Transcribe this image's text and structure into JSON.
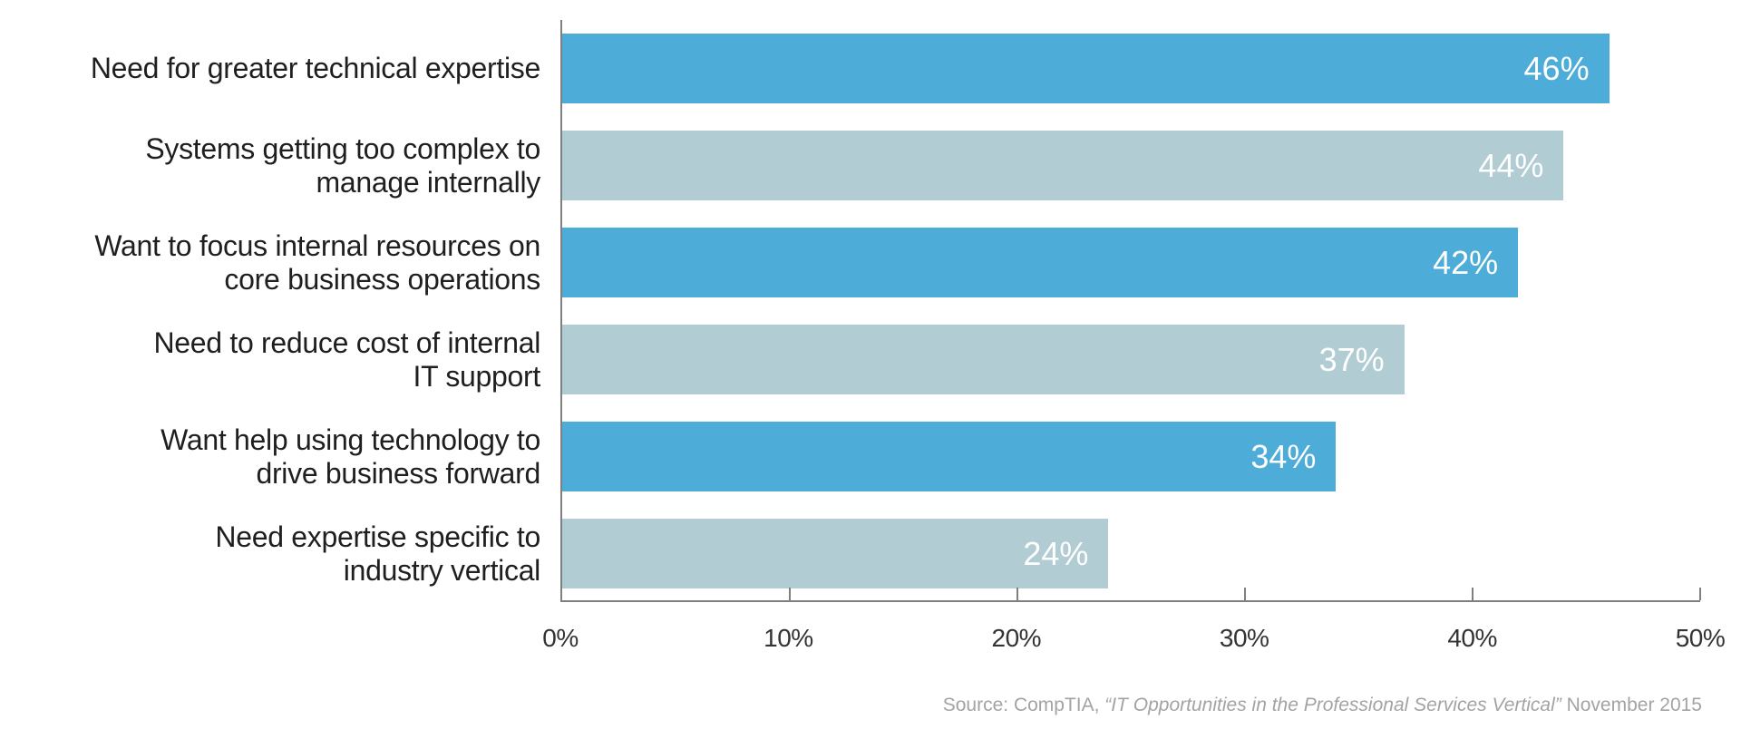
{
  "chart_data": {
    "type": "bar",
    "orientation": "horizontal",
    "categories": [
      "Need for greater technical expertise",
      "Systems getting too complex to\nmanage internally",
      "Want to focus internal resources on\ncore business operations",
      "Need to reduce cost of internal\nIT support",
      "Want help using technology to\ndrive business forward",
      "Need expertise specific to\nindustry vertical"
    ],
    "values": [
      46,
      44,
      42,
      37,
      34,
      24
    ],
    "value_labels": [
      "46%",
      "44%",
      "42%",
      "37%",
      "34%",
      "24%"
    ],
    "xlabel": "",
    "ylabel": "",
    "xlim": [
      0,
      50
    ],
    "x_ticks": [
      "0%",
      "10%",
      "20%",
      "30%",
      "40%",
      "50%"
    ],
    "grid": false,
    "legend": "none",
    "bar_color_odd_rows": "#4eacd8",
    "bar_color_even_rows": "#b2ccd4"
  },
  "colors": {
    "bar_dark": "#4eacd8",
    "bar_light": "#b2ccd4",
    "axis_line": "#7f7f7f",
    "category_label": "#1f1f1f",
    "tick_label": "#333333",
    "value_label": "#ffffff",
    "source_text": "#a3a3a3",
    "background": "#ffffff"
  },
  "source": {
    "prefix": "Source: CompTIA, ",
    "title": "“IT Opportunities in the Professional Services Vertical”",
    "suffix": " November 2015"
  }
}
